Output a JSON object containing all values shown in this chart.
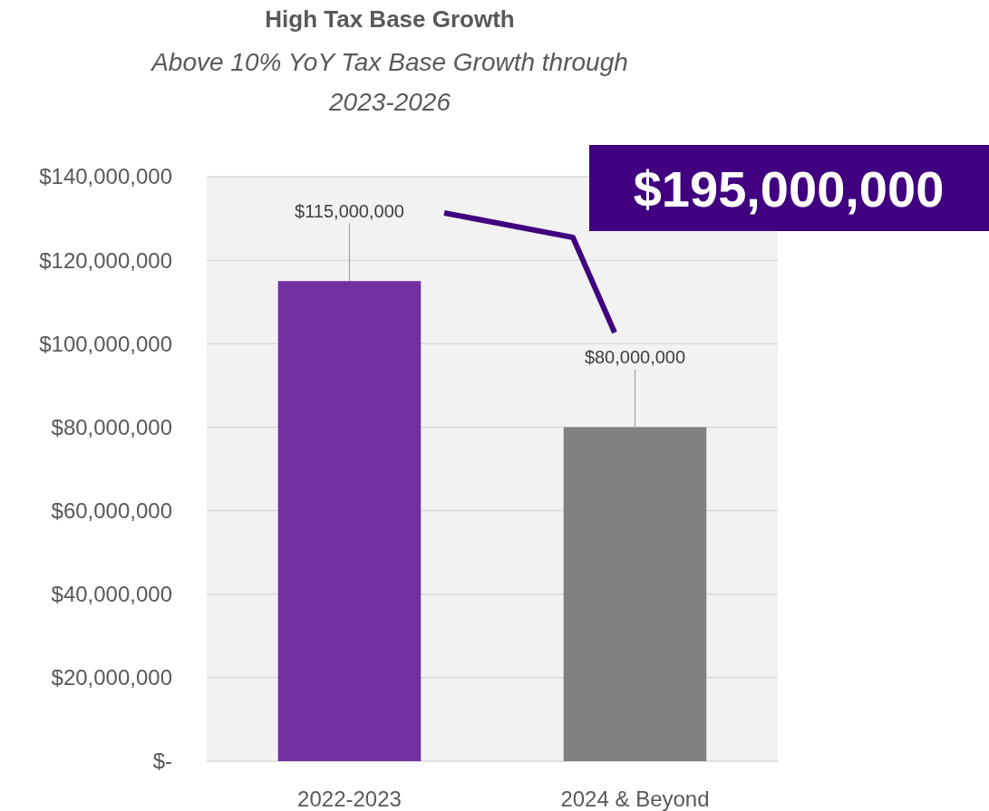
{
  "chart_data": {
    "type": "bar",
    "title": "High Tax Base Growth",
    "subtitle": "Above 10% YoY Tax Base Growth through 2023-2026",
    "categories": [
      "2022-2023",
      "2024 & Beyond"
    ],
    "values": [
      115000000,
      80000000
    ],
    "colors": [
      "#7030a0",
      "#808080"
    ],
    "value_labels": [
      "$115,000,000",
      "$80,000,000"
    ],
    "ylim": [
      0,
      140000000
    ],
    "yticks": [
      {
        "value": 0,
        "label": "$-"
      },
      {
        "value": 20000000,
        "label": "$20,000,000"
      },
      {
        "value": 40000000,
        "label": "$40,000,000"
      },
      {
        "value": 60000000,
        "label": "$60,000,000"
      },
      {
        "value": 80000000,
        "label": "$80,000,000"
      },
      {
        "value": 100000000,
        "label": "$100,000,000"
      },
      {
        "value": 120000000,
        "label": "$120,000,000"
      },
      {
        "value": 140000000,
        "label": "$140,000,000"
      }
    ],
    "grid": "y",
    "annotations": [
      "$195,000,000"
    ]
  }
}
